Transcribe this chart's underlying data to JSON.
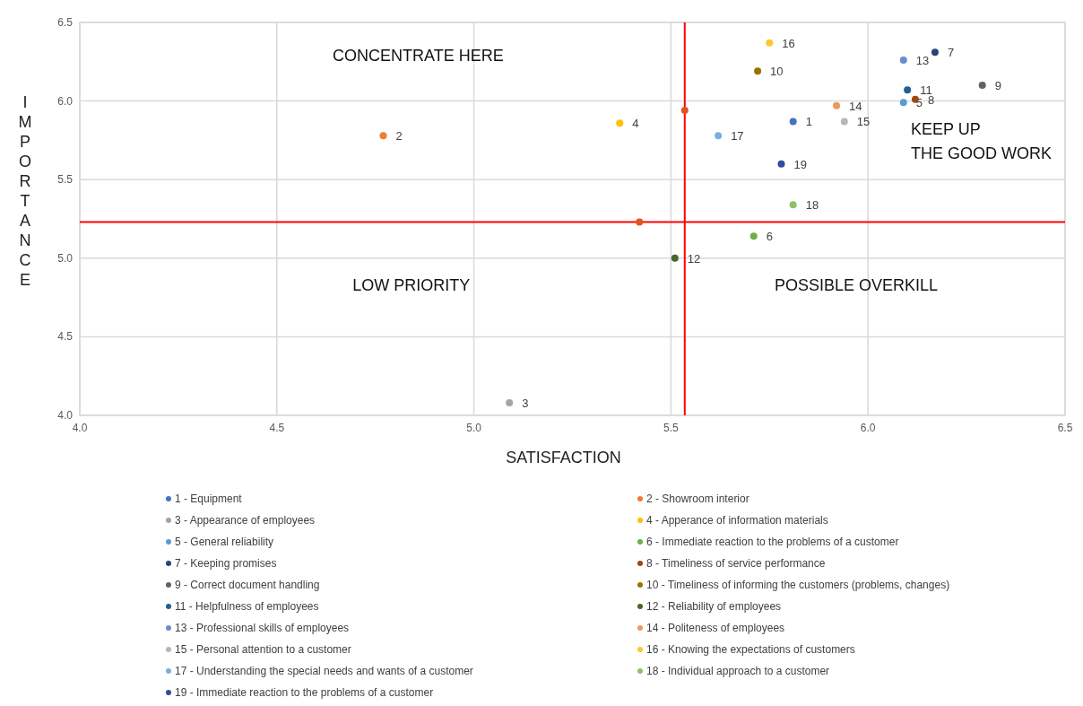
{
  "chart_data": {
    "type": "scatter",
    "xlabel": "SATISFACTION",
    "ylabel": "IMPORTANCE",
    "xlim": [
      4.0,
      6.5
    ],
    "xticks": [
      {
        "value": 4.0,
        "label": "4.0"
      },
      {
        "value": 4.5,
        "label": "4.5"
      },
      {
        "value": 5.0,
        "label": "5.0"
      },
      {
        "value": 5.5,
        "label": "5.5"
      },
      {
        "value": 6.0,
        "label": "6.0"
      },
      {
        "value": 6.5,
        "label": "6.5"
      }
    ],
    "ylim": [
      4.0,
      6.5
    ],
    "yticks": [
      {
        "value": 4.0,
        "label": "4.0"
      },
      {
        "value": 4.5,
        "label": "4.5"
      },
      {
        "value": 5.0,
        "label": "5.0"
      },
      {
        "value": 5.5,
        "label": "5.5"
      },
      {
        "value": 6.0,
        "label": "6.0"
      },
      {
        "value": 6.5,
        "label": "6.5"
      }
    ],
    "grid": true,
    "legend": "bottom",
    "marker": "circle",
    "ref_lines": [
      {
        "axis": "x",
        "value": 5.535,
        "color": "#ff0000"
      },
      {
        "axis": "y",
        "value": 5.23,
        "color": "#ff0000"
      }
    ],
    "annotations": [
      "CONCENTRATE HERE",
      "KEEP UP\nTHE GOOD WORK",
      "LOW PRIORITY",
      "POSSIBLE OVERKILL",
      {
        "text": "1",
        "x": 5.81,
        "y": 5.87
      },
      {
        "text": "2",
        "x": 4.77,
        "y": 5.78
      },
      {
        "text": "3",
        "x": 5.09,
        "y": 4.08
      },
      {
        "text": "4",
        "x": 5.37,
        "y": 5.86
      },
      {
        "text": "5",
        "x": 6.09,
        "y": 5.99
      },
      {
        "text": "6",
        "x": 5.71,
        "y": 5.14
      },
      {
        "text": "7",
        "x": 6.17,
        "y": 6.31
      },
      {
        "text": "8",
        "x": 6.12,
        "y": 6.01
      },
      {
        "text": "9",
        "x": 6.29,
        "y": 6.1
      },
      {
        "text": "10",
        "x": 5.72,
        "y": 6.19
      },
      {
        "text": "11",
        "x": 6.1,
        "y": 6.07
      },
      {
        "text": "12",
        "x": 5.51,
        "y": 5.0
      },
      {
        "text": "13",
        "x": 6.09,
        "y": 6.26
      },
      {
        "text": "14",
        "x": 5.92,
        "y": 5.97
      },
      {
        "text": "15",
        "x": 5.94,
        "y": 5.87
      },
      {
        "text": "16",
        "x": 5.75,
        "y": 6.37
      },
      {
        "text": "17",
        "x": 5.62,
        "y": 5.78
      },
      {
        "text": "18",
        "x": 5.81,
        "y": 5.34
      },
      {
        "text": "19",
        "x": 5.78,
        "y": 5.6
      }
    ],
    "series": [
      {
        "name": "1 - Equipment",
        "color": "#4472c4",
        "x": [
          5.81
        ],
        "values": [
          5.87
        ]
      },
      {
        "name": "2 - Showroom interior",
        "color": "#ed7d31",
        "x": [
          4.77
        ],
        "values": [
          5.78
        ]
      },
      {
        "name": "3 - Appearance of employees",
        "color": "#a5a5a5",
        "x": [
          5.09
        ],
        "values": [
          4.08
        ]
      },
      {
        "name": "4 - Apperance of information materials",
        "color": "#ffc000",
        "x": [
          5.37
        ],
        "values": [
          5.86
        ]
      },
      {
        "name": "5 - General reliability",
        "color": "#5b9bd5",
        "x": [
          6.09
        ],
        "values": [
          5.99
        ]
      },
      {
        "name": "6 - Immediate reaction to the problems of a customer",
        "color": "#70ad47",
        "x": [
          5.71
        ],
        "values": [
          5.14
        ]
      },
      {
        "name": "7 - Keeping promises",
        "color": "#264478",
        "x": [
          6.17
        ],
        "values": [
          6.31
        ]
      },
      {
        "name": "8 - Timeliness of service performance",
        "color": "#9e480e",
        "x": [
          6.12
        ],
        "values": [
          6.01
        ]
      },
      {
        "name": "9 - Correct document handling",
        "color": "#636363",
        "x": [
          6.29
        ],
        "values": [
          6.1
        ]
      },
      {
        "name": "10 - Timeliness of informing the customers (problems, changes)",
        "color": "#997300",
        "x": [
          5.72
        ],
        "values": [
          6.19
        ]
      },
      {
        "name": "11 - Helpfulness of employees",
        "color": "#255e91",
        "x": [
          6.1
        ],
        "values": [
          6.07
        ]
      },
      {
        "name": "12 - Reliability of employees",
        "color": "#43682b",
        "x": [
          5.51
        ],
        "values": [
          5.0
        ]
      },
      {
        "name": "13 - Professional skills of employees",
        "color": "#698ed0",
        "x": [
          6.09
        ],
        "values": [
          6.26
        ]
      },
      {
        "name": "14 - Politeness of employees",
        "color": "#f1975a",
        "x": [
          5.92
        ],
        "values": [
          5.97
        ]
      },
      {
        "name": "15 - Personal attention to a customer",
        "color": "#b7b7b7",
        "x": [
          5.94
        ],
        "values": [
          5.87
        ]
      },
      {
        "name": "16 - Knowing the expectations of customers",
        "color": "#ffc72c",
        "x": [
          5.75
        ],
        "values": [
          6.37
        ]
      },
      {
        "name": "17 - Understanding the special needs and wants of a customer",
        "color": "#7cafdd",
        "x": [
          5.62
        ],
        "values": [
          5.78
        ]
      },
      {
        "name": "18 - Individual approach to a customer",
        "color": "#8cc168",
        "x": [
          5.81
        ],
        "values": [
          5.34
        ]
      },
      {
        "name": "19 - Immediate reaction to the problems of a customer",
        "color": "#2e4d9b",
        "x": [
          5.78
        ],
        "values": [
          5.6
        ]
      },
      {
        "color": "#e0531c",
        "x": [
          5.535,
          5.42
        ],
        "values": [
          5.94,
          5.23
        ]
      }
    ]
  }
}
